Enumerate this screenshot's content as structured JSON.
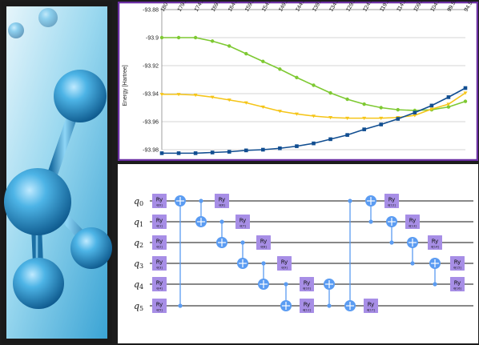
{
  "chart_data": {
    "type": "line",
    "title": "",
    "ylabel": "Energy [Hartree]",
    "xlabel": "",
    "x_ticks": [
      "180",
      "179.5902",
      "174.5902",
      "169.5902",
      "164.5902",
      "159.5902",
      "154.5902",
      "149.5902",
      "144.5902",
      "139.5902",
      "134.5902",
      "129.5902",
      "124.5902",
      "119.5902",
      "114.5902",
      "109.5902",
      "104.5902",
      "99.5902",
      "94.5902"
    ],
    "y_ticks": [
      "-93.88",
      "-93.9",
      "-93.92",
      "-93.94",
      "-93.96",
      "-93.98"
    ],
    "ylim": [
      -93.98,
      -93.88
    ],
    "grid": true,
    "legend": "none",
    "series": [
      {
        "color": "#7ec932",
        "marker": "circle",
        "values": [
          -93.9,
          -93.9,
          -93.9,
          -93.9025,
          -93.906,
          -93.9115,
          -93.917,
          -93.9225,
          -93.9285,
          -93.934,
          -93.9395,
          -93.944,
          -93.9475,
          -93.95,
          -93.9515,
          -93.952,
          -93.9515,
          -93.9495,
          -93.9455
        ]
      },
      {
        "color": "#f5c518",
        "marker": "triangle",
        "values": [
          -93.9405,
          -93.9405,
          -93.941,
          -93.9425,
          -93.9445,
          -93.9465,
          -93.9495,
          -93.9525,
          -93.9545,
          -93.956,
          -93.957,
          -93.9575,
          -93.9575,
          -93.9575,
          -93.957,
          -93.9555,
          -93.951,
          -93.9475,
          -93.9395
        ]
      },
      {
        "color": "#114e91",
        "marker": "square",
        "values": [
          -93.9825,
          -93.9825,
          -93.9825,
          -93.982,
          -93.9815,
          -93.9805,
          -93.98,
          -93.979,
          -93.9775,
          -93.9755,
          -93.9725,
          -93.9695,
          -93.9655,
          -93.962,
          -93.958,
          -93.9535,
          -93.9485,
          -93.9425,
          -93.936
        ]
      }
    ]
  },
  "circuit": {
    "qubits": [
      {
        "base": "q",
        "sub": "0"
      },
      {
        "base": "q",
        "sub": "1"
      },
      {
        "base": "q",
        "sub": "2"
      },
      {
        "base": "q",
        "sub": "3"
      },
      {
        "base": "q",
        "sub": "4"
      },
      {
        "base": "q",
        "sub": "5"
      }
    ],
    "ry_label": "Ry",
    "init_params": [
      "θ[0]",
      "θ[1]",
      "θ[2]",
      "θ[3]",
      "θ[4]",
      "θ[5]"
    ],
    "layer_params": [
      "θ[6]",
      "θ[7]",
      "θ[8]",
      "θ[9]",
      "θ[10]",
      "θ[11]"
    ],
    "final_params": [
      "θ[12]",
      "θ[13]",
      "θ[14]",
      "θ[15]",
      "θ[16]",
      "θ[17]"
    ],
    "colors": {
      "ry": "#a78ee6",
      "cnot": "#5b9cf2",
      "wire": "#111111"
    }
  },
  "photo": {
    "colors": {
      "bg_light": "#e0f3fb",
      "bg_mid": "#8fd2ec",
      "sphere": "#2f93c8",
      "frame": "#1a1a1a"
    }
  }
}
